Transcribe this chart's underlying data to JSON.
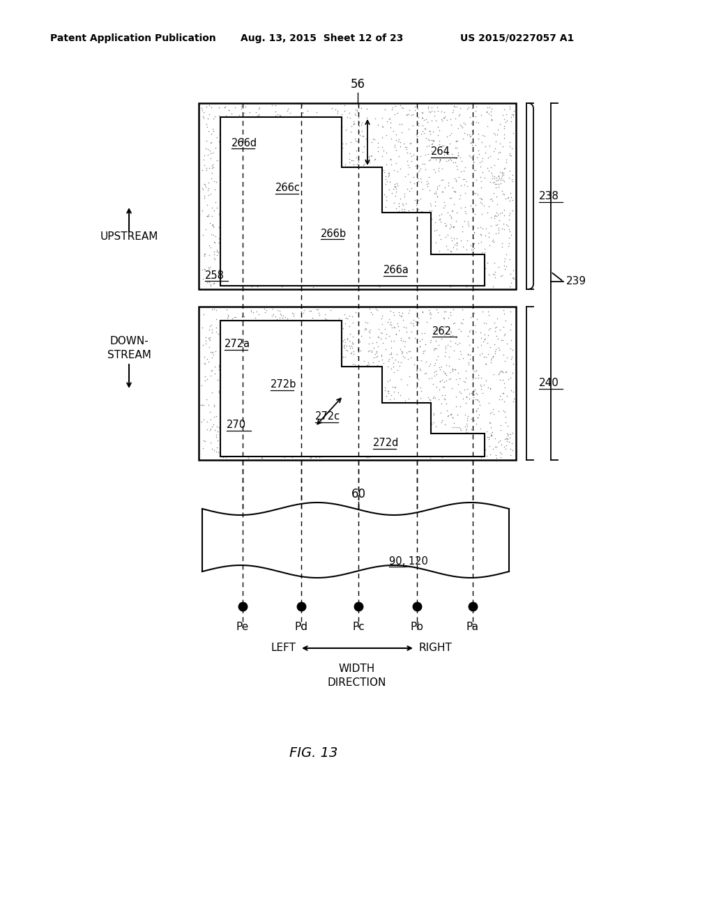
{
  "bg_color": "#ffffff",
  "header_left": "Patent Application Publication",
  "header_mid": "Aug. 13, 2015  Sheet 12 of 23",
  "header_right": "US 2015/0227057 A1",
  "fig_label": "FIG. 13",
  "label_56": "56",
  "label_238": "238",
  "label_239": "239",
  "label_240": "240",
  "label_258": "258",
  "label_264": "264",
  "label_266a": "266a",
  "label_266b": "266b",
  "label_266c": "266c",
  "label_266d": "266d",
  "label_262": "262",
  "label_270": "270",
  "label_272a": "272a",
  "label_272b": "272b",
  "label_272c": "272c",
  "label_272d": "272d",
  "label_60": "60",
  "label_90_120": "90, 120",
  "label_upstream": "UPSTREAM",
  "label_Pe": "Pe",
  "label_Pd": "Pd",
  "label_Pc": "Pc",
  "label_Pb": "Pb",
  "label_Pa": "Pa",
  "label_left": "LEFT",
  "label_right": "RIGHT",
  "label_width": "WIDTH",
  "label_direction": "DIRECTION"
}
